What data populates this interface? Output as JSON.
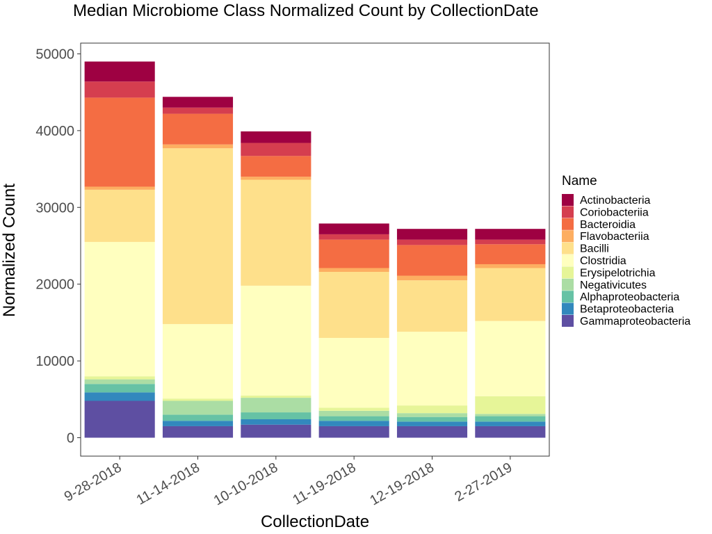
{
  "chart_data": {
    "type": "bar",
    "stacked": true,
    "title": "Median Microbiome Class Normalized Count by CollectionDate",
    "xlabel": "CollectionDate",
    "ylabel": "Normalized Count",
    "ylim": [
      -2400,
      51400
    ],
    "yticks": [
      0,
      10000,
      20000,
      30000,
      40000,
      50000
    ],
    "grid": false,
    "legend_title": "Name",
    "legend_position": "right",
    "categories": [
      "9-28-2018",
      "11-14-2018",
      "10-10-2018",
      "11-19-2018",
      "12-19-2018",
      "2-27-2019"
    ],
    "series": [
      {
        "name": "Gammaproteobacteria",
        "color": "#5E4FA2",
        "values": [
          4800,
          1500,
          1700,
          1500,
          1500,
          1500
        ]
      },
      {
        "name": "Betaproteobacteria",
        "color": "#3288BD",
        "values": [
          1100,
          700,
          700,
          700,
          600,
          600
        ]
      },
      {
        "name": "Alphaproteobacteria",
        "color": "#66C2A5",
        "values": [
          1100,
          800,
          900,
          600,
          600,
          700
        ]
      },
      {
        "name": "Negativicutes",
        "color": "#ABDDA4",
        "values": [
          600,
          1800,
          1900,
          700,
          500,
          300
        ]
      },
      {
        "name": "Erysipelotrichia",
        "color": "#E6F598",
        "values": [
          400,
          300,
          300,
          400,
          1000,
          2300
        ]
      },
      {
        "name": "Clostridia",
        "color": "#FFFFBF",
        "values": [
          17500,
          9700,
          14300,
          9100,
          9600,
          9800
        ]
      },
      {
        "name": "Bacilli",
        "color": "#FEE08B",
        "values": [
          6800,
          22900,
          13800,
          8600,
          6700,
          6900
        ]
      },
      {
        "name": "Flavobacteriia",
        "color": "#FDAE61",
        "values": [
          400,
          500,
          400,
          500,
          600,
          500
        ]
      },
      {
        "name": "Bacteroidia",
        "color": "#F46D43",
        "values": [
          11600,
          4000,
          2700,
          3700,
          4000,
          2600
        ]
      },
      {
        "name": "Coriobacteriia",
        "color": "#D53E4F",
        "values": [
          2100,
          800,
          1700,
          700,
          700,
          600
        ]
      },
      {
        "name": "Actinobacteria",
        "color": "#9E0142",
        "values": [
          2600,
          1400,
          1500,
          1400,
          1400,
          1400
        ]
      }
    ],
    "legend_order": [
      "Actinobacteria",
      "Coriobacteriia",
      "Bacteroidia",
      "Flavobacteriia",
      "Bacilli",
      "Clostridia",
      "Erysipelotrichia",
      "Negativicutes",
      "Alphaproteobacteria",
      "Betaproteobacteria",
      "Gammaproteobacteria"
    ]
  }
}
